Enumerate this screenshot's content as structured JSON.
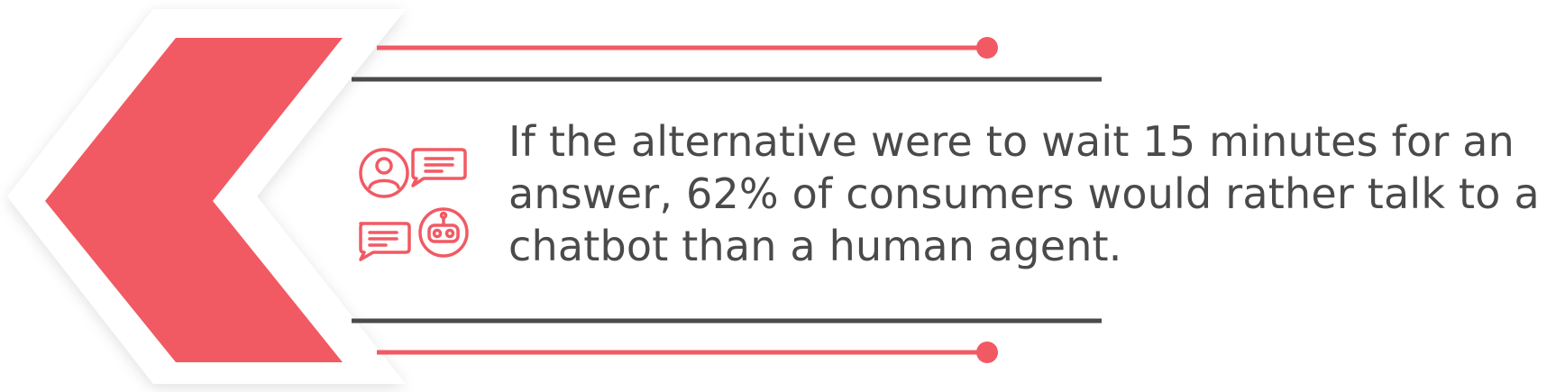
{
  "colors": {
    "accent": "#f15a63",
    "dark_line": "#4a4a4a",
    "panel": "#ffffff",
    "background": "#f4f4f4",
    "text": "#4a4a4a"
  },
  "icons": [
    "person-chat-icon",
    "speech-bubble-icon",
    "chatbot-icon"
  ],
  "statement": {
    "text": "If the alternative were to wait 15 minutes for an answer, 62% of consumers would rather talk to a chatbot than a human agent."
  }
}
